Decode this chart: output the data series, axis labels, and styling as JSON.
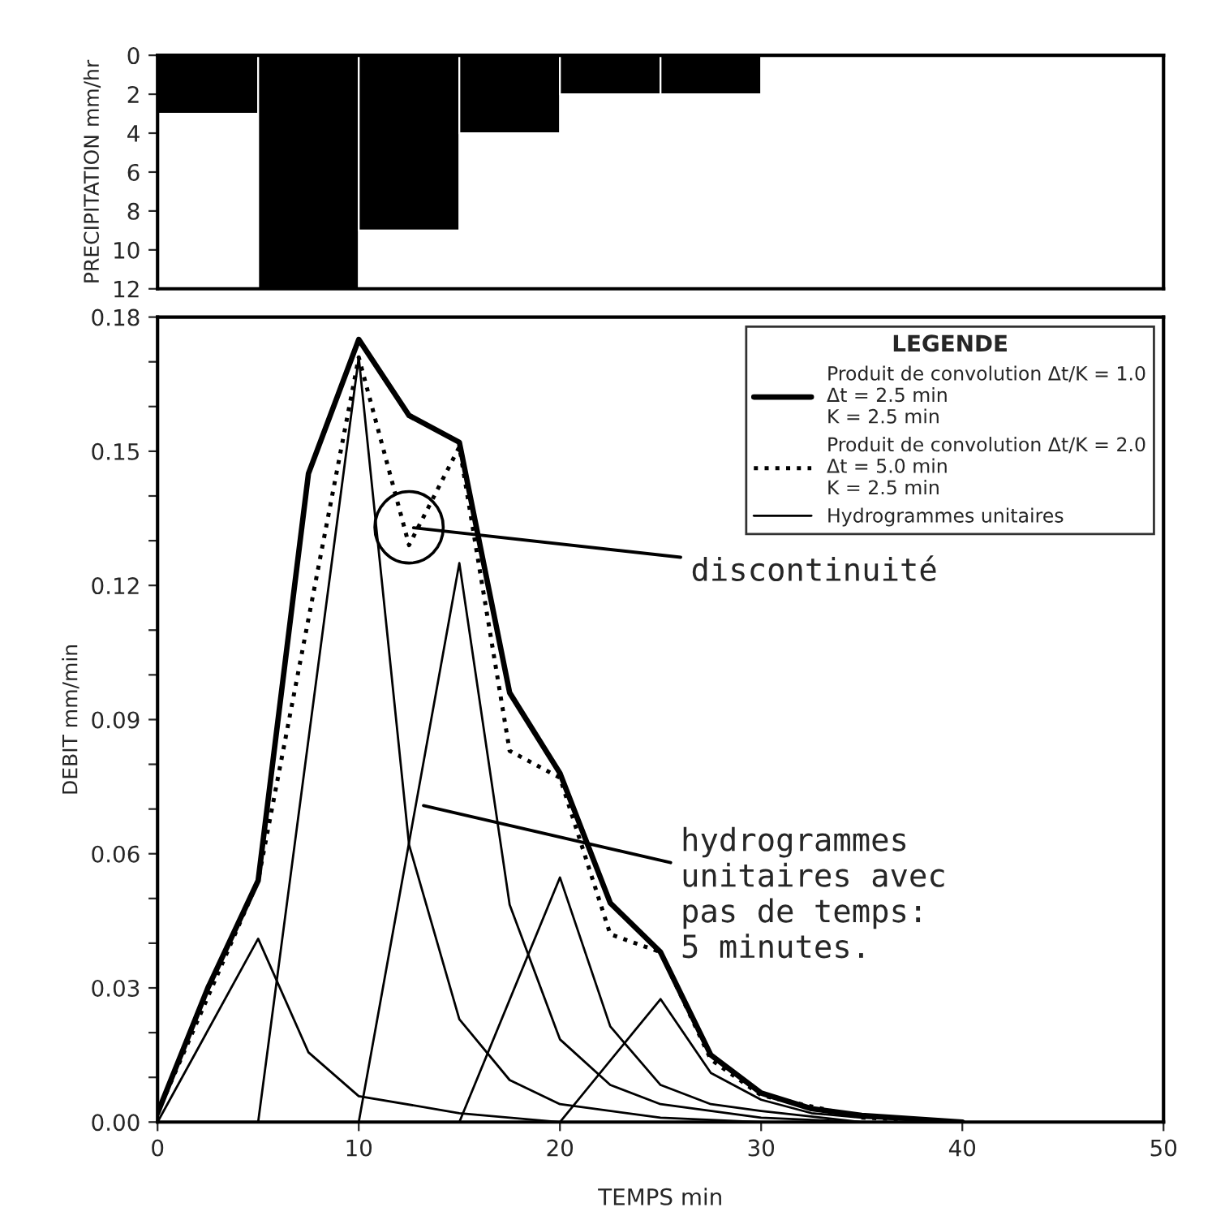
{
  "chart_data": [
    {
      "type": "histogram",
      "ylabel": "PRECIPITATION mm/hr",
      "bins": [
        0,
        5,
        10,
        15,
        20,
        25,
        30
      ],
      "values": [
        3,
        12,
        9,
        4,
        2,
        2
      ],
      "color": "#000000",
      "xlim": [
        0,
        50
      ],
      "ylim": [
        12,
        0
      ],
      "yticks": [
        0,
        2,
        4,
        6,
        8,
        10,
        12
      ],
      "tick_labels": "y",
      "grid": false,
      "legend": false
    },
    {
      "type": "line",
      "xlabel": "TEMPS min",
      "ylabel": "DEBIT mm/min",
      "legend_title": "LEGENDE",
      "legend": "top right",
      "grid": false,
      "xlim": [
        0,
        50
      ],
      "ylim": [
        0,
        0.18
      ],
      "xticks": [
        0,
        10,
        20,
        30,
        40,
        50
      ],
      "yticks": [
        {
          "value": 0,
          "label": "0.00"
        },
        {
          "value": 0.01,
          "label": null
        },
        {
          "value": 0.02,
          "label": null
        },
        {
          "value": 0.03,
          "label": "0.03"
        },
        {
          "value": 0.04,
          "label": null
        },
        {
          "value": 0.05,
          "label": null
        },
        {
          "value": 0.06,
          "label": "0.06"
        },
        {
          "value": 0.07,
          "label": null
        },
        {
          "value": 0.08,
          "label": null
        },
        {
          "value": 0.09,
          "label": "0.09"
        },
        {
          "value": 0.1,
          "label": null
        },
        {
          "value": 0.11,
          "label": null
        },
        {
          "value": 0.12,
          "label": "0.12"
        },
        {
          "value": 0.13,
          "label": null
        },
        {
          "value": 0.14,
          "label": null
        },
        {
          "value": 0.15,
          "label": "0.15"
        },
        {
          "value": 0.16,
          "label": null
        },
        {
          "value": 0.17,
          "label": null
        },
        {
          "value": 0.18,
          "label": "0.18"
        }
      ],
      "series": [
        {
          "name": "Produit de convolution Δt/K = 1.0\nΔt = 2.5 min\nK = 2.5 min",
          "color": "#000000",
          "line_style": "solid",
          "x": [
            0,
            2.5,
            5,
            7.5,
            10,
            12.5,
            15,
            17.5,
            20,
            22.5,
            25,
            27.5,
            30,
            32.5,
            35,
            40
          ],
          "values": [
            0.002,
            0.03,
            0.054,
            0.145,
            0.175,
            0.158,
            0.152,
            0.096,
            0.078,
            0.049,
            0.038,
            0.015,
            0.0065,
            0.003,
            0.0015,
            0
          ]
        },
        {
          "name": "Produit de convolution Δt/K = 2.0\nΔt = 5.0 min\nK = 2.5 min",
          "color": "#000000",
          "line_style": "dotted",
          "x": [
            0,
            5,
            10,
            12.5,
            15,
            17.5,
            20,
            22.5,
            25,
            27.5,
            30,
            35,
            40
          ],
          "values": [
            0.002,
            0.054,
            0.171,
            0.129,
            0.151,
            0.083,
            0.077,
            0.042,
            0.038,
            0.014,
            0.006,
            0.001,
            0
          ]
        },
        {
          "name": "Hydrogrammes unitaires",
          "color": "#000000",
          "line_style": "solid",
          "x": [
            0,
            5,
            7.5,
            10,
            15,
            20
          ],
          "values": [
            0,
            0.041,
            0.0156,
            0.0058,
            0.002,
            0
          ]
        },
        {
          "color": "#000000",
          "line_style": "solid",
          "x": [
            5,
            10,
            12.5,
            15,
            17.5,
            20,
            25,
            30
          ],
          "values": [
            0,
            0.171,
            0.062,
            0.023,
            0.0094,
            0.004,
            0.001,
            0
          ]
        },
        {
          "color": "#000000",
          "line_style": "solid",
          "x": [
            10,
            15,
            17.5,
            20,
            22.5,
            25,
            30,
            35
          ],
          "values": [
            0,
            0.125,
            0.0486,
            0.0185,
            0.0083,
            0.004,
            0.001,
            0
          ]
        },
        {
          "color": "#000000",
          "line_style": "solid",
          "x": [
            15,
            20,
            22.5,
            25,
            27.5,
            30,
            35
          ],
          "values": [
            0,
            0.0547,
            0.0214,
            0.0083,
            0.004,
            0.0025,
            0
          ]
        },
        {
          "color": "#000000",
          "line_style": "solid",
          "x": [
            20,
            25,
            27.5,
            30,
            32.5,
            35,
            40
          ],
          "values": [
            0,
            0.0275,
            0.011,
            0.005,
            0.002,
            0.001,
            0
          ]
        }
      ],
      "annotations": [
        {
          "text": "discontinuité",
          "x": 12.5,
          "y": 0.133
        },
        {
          "text": "hydrogrammes\nunitaires avec\npas de temps:\n5 minutes.",
          "x": 13,
          "y": 0.071
        }
      ]
    }
  ]
}
